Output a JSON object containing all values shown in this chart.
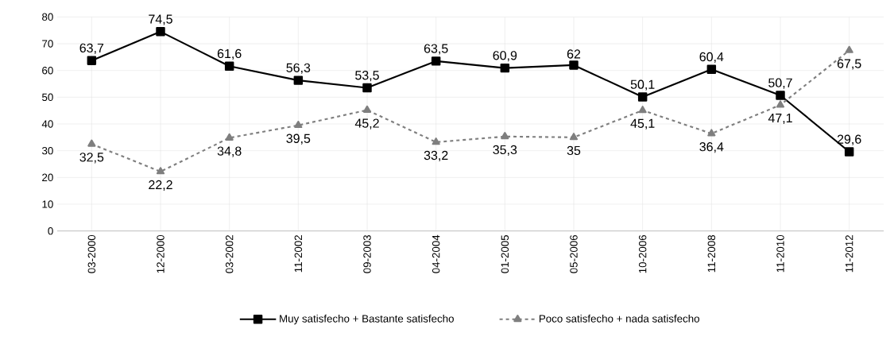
{
  "chart_data": {
    "type": "line",
    "categories": [
      "03-2000",
      "12-2000",
      "03-2002",
      "11-2002",
      "09-2003",
      "04-2004",
      "01-2005",
      "05-2006",
      "10-2006",
      "11-2008",
      "11-2010",
      "11-2012"
    ],
    "series": [
      {
        "name": "Muy satisfecho + Bastante satisfecho",
        "color": "#000000",
        "marker": "square",
        "line_style": "solid",
        "values": [
          63.7,
          74.5,
          61.6,
          56.3,
          53.5,
          63.5,
          60.9,
          62,
          50.1,
          60.4,
          50.7,
          29.6
        ],
        "value_labels": [
          "63,7",
          "74,5",
          "61,6",
          "56,3",
          "53,5",
          "63,5",
          "60,9",
          "62",
          "50,1",
          "60,4",
          "50,7",
          "29,6"
        ]
      },
      {
        "name": "Poco satisfecho + nada satisfecho",
        "color": "#7f7f7f",
        "marker": "triangle",
        "line_style": "dashed",
        "values": [
          32.5,
          22.2,
          34.8,
          39.5,
          45.2,
          33.2,
          35.3,
          35,
          45.1,
          36.4,
          47.1,
          67.5
        ],
        "value_labels": [
          "32,5",
          "22,2",
          "34,8",
          "39,5",
          "45,2",
          "33,2",
          "35,3",
          "35",
          "45,1",
          "36,4",
          "47,1",
          "67,5"
        ]
      }
    ],
    "ylim": [
      0,
      80
    ],
    "yticks": [
      0,
      10,
      20,
      30,
      40,
      50,
      60,
      70,
      80
    ],
    "grid": true,
    "legend": "bottom"
  }
}
